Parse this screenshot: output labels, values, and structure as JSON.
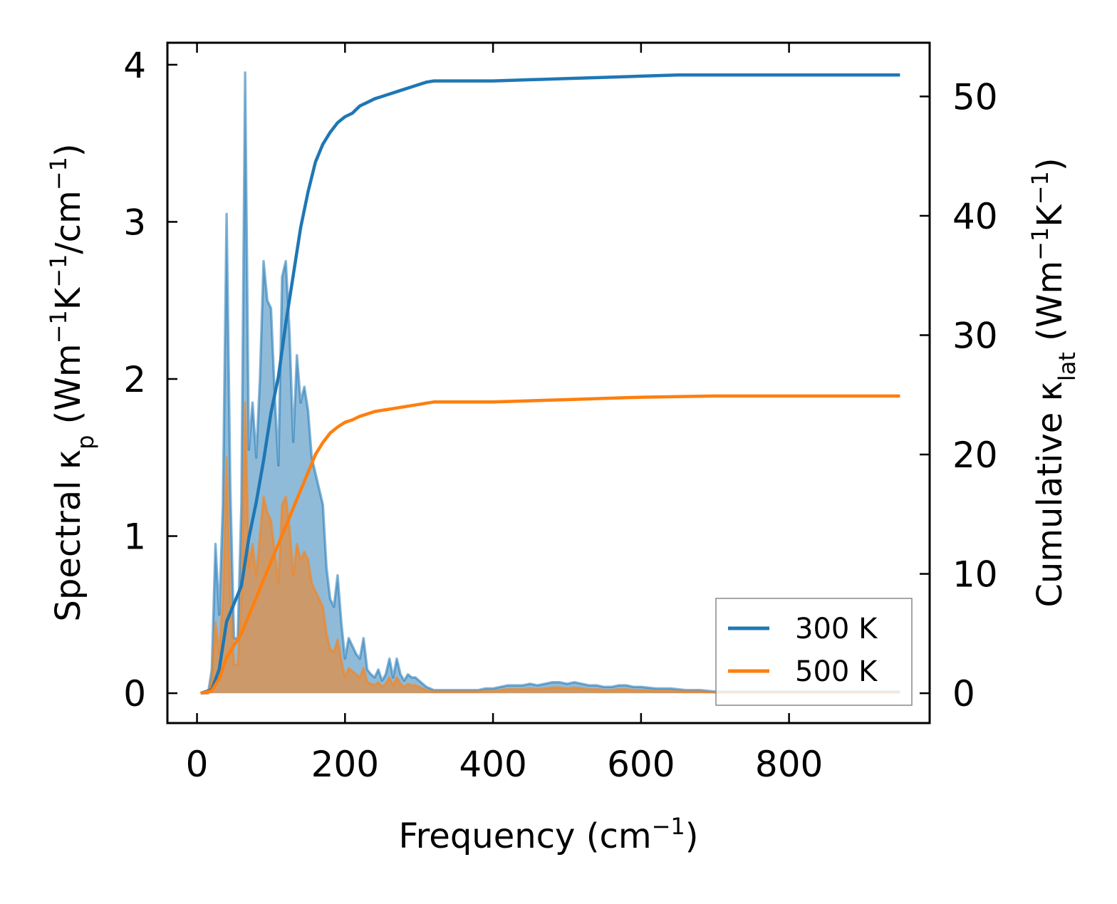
{
  "chart_data": {
    "type": "area",
    "xlabel": "Frequency (cm",
    "xlabel_sup": "−1",
    "xlabel_end": ")",
    "ylabel_left": {
      "part1": "Spectral κ",
      "sub": "p",
      "part2": " (Wm",
      "sup1": "−1",
      "part3": "K",
      "sup2": "−1",
      "part4": "/cm",
      "sup3": "−1",
      "part5": ")"
    },
    "ylabel_right": {
      "part1": "Cumulative κ",
      "sub": "lat",
      "part2": " (Wm",
      "sup1": "−1",
      "part3": "K",
      "sup2": "−1",
      "part4": ")"
    },
    "xlim": [
      -40,
      990
    ],
    "ylim_left": [
      -0.19,
      4.14
    ],
    "ylim_right": [
      -2.5,
      54.5
    ],
    "xticks": [
      0,
      200,
      400,
      600,
      800
    ],
    "yticks_left": [
      0,
      1,
      2,
      3,
      4
    ],
    "yticks_right": [
      0,
      10,
      20,
      30,
      40,
      50
    ],
    "legend_position": "lower-right",
    "colors": {
      "300K": "#1f77b4",
      "500K": "#ff7f0e",
      "blend": "#c49a6c"
    },
    "series": [
      {
        "name": "300 K",
        "spectral": {
          "x": [
            5,
            15,
            20,
            25,
            30,
            35,
            40,
            45,
            50,
            55,
            60,
            65,
            70,
            75,
            80,
            85,
            90,
            95,
            100,
            105,
            110,
            115,
            120,
            125,
            130,
            135,
            140,
            145,
            150,
            155,
            160,
            165,
            170,
            175,
            180,
            185,
            190,
            195,
            200,
            205,
            210,
            215,
            220,
            225,
            230,
            235,
            240,
            245,
            250,
            255,
            260,
            265,
            270,
            275,
            280,
            285,
            290,
            295,
            300,
            305,
            310,
            315,
            320,
            325,
            330,
            340,
            350,
            360,
            370,
            380,
            390,
            400,
            410,
            420,
            430,
            440,
            450,
            460,
            470,
            480,
            490,
            500,
            510,
            520,
            530,
            540,
            550,
            560,
            570,
            580,
            590,
            600,
            620,
            640,
            660,
            680,
            700,
            750,
            800,
            850,
            900,
            950
          ],
          "y": [
            0,
            0,
            0.15,
            0.95,
            0.5,
            1.2,
            3.05,
            1.3,
            0.35,
            0.35,
            1.2,
            3.95,
            1.55,
            1.85,
            1.5,
            2.0,
            2.75,
            2.5,
            2.45,
            1.9,
            1.45,
            2.65,
            2.75,
            2.3,
            1.6,
            2.15,
            1.85,
            1.95,
            1.8,
            1.5,
            1.4,
            1.3,
            1.2,
            0.8,
            0.6,
            0.55,
            0.75,
            0.45,
            0.22,
            0.35,
            0.3,
            0.25,
            0.22,
            0.35,
            0.15,
            0.12,
            0.1,
            0.15,
            0.08,
            0.12,
            0.22,
            0.1,
            0.22,
            0.12,
            0.08,
            0.12,
            0.1,
            0.1,
            0.08,
            0.06,
            0.04,
            0.03,
            0.02,
            0.02,
            0.02,
            0.02,
            0.02,
            0.02,
            0.02,
            0.02,
            0.03,
            0.03,
            0.04,
            0.05,
            0.05,
            0.05,
            0.06,
            0.05,
            0.06,
            0.07,
            0.07,
            0.06,
            0.07,
            0.06,
            0.05,
            0.05,
            0.04,
            0.04,
            0.05,
            0.05,
            0.04,
            0.04,
            0.03,
            0.03,
            0.02,
            0.02,
            0.01,
            0.01,
            0.01,
            0.01,
            0.01,
            0.01
          ]
        },
        "cumulative": {
          "x": [
            5,
            20,
            30,
            40,
            50,
            60,
            70,
            80,
            90,
            100,
            110,
            120,
            130,
            140,
            150,
            160,
            170,
            180,
            190,
            200,
            210,
            220,
            230,
            240,
            250,
            260,
            270,
            280,
            290,
            300,
            310,
            320,
            350,
            400,
            450,
            500,
            550,
            600,
            650,
            700,
            750,
            800,
            850,
            900,
            950
          ],
          "y": [
            0,
            0.3,
            2,
            6,
            7.5,
            9,
            13,
            16,
            19.5,
            23.5,
            26.5,
            31,
            35,
            39,
            42,
            44.5,
            46,
            47,
            47.8,
            48.3,
            48.6,
            49.2,
            49.5,
            49.8,
            50,
            50.2,
            50.4,
            50.6,
            50.8,
            51,
            51.2,
            51.3,
            51.3,
            51.3,
            51.4,
            51.5,
            51.6,
            51.7,
            51.8,
            51.8,
            51.8,
            51.8,
            51.8,
            51.8,
            51.8
          ]
        }
      },
      {
        "name": "500 K",
        "spectral": {
          "x": [
            5,
            15,
            20,
            25,
            30,
            35,
            40,
            45,
            50,
            55,
            60,
            65,
            70,
            75,
            80,
            85,
            90,
            95,
            100,
            105,
            110,
            115,
            120,
            125,
            130,
            135,
            140,
            145,
            150,
            155,
            160,
            165,
            170,
            175,
            180,
            185,
            190,
            195,
            200,
            205,
            210,
            215,
            220,
            225,
            230,
            235,
            240,
            245,
            250,
            255,
            260,
            265,
            270,
            275,
            280,
            285,
            290,
            295,
            300,
            305,
            310,
            315,
            320,
            325,
            330,
            340,
            350,
            360,
            370,
            380,
            390,
            400,
            410,
            420,
            430,
            440,
            450,
            460,
            470,
            480,
            490,
            500,
            510,
            520,
            530,
            540,
            550,
            560,
            570,
            580,
            590,
            600,
            620,
            640,
            660,
            680,
            700,
            750,
            800,
            850,
            900,
            950
          ],
          "y": [
            0,
            0,
            0.08,
            0.45,
            0.25,
            0.6,
            1.5,
            0.6,
            0.18,
            0.18,
            0.6,
            1.85,
            0.8,
            0.95,
            0.75,
            1.0,
            1.25,
            1.15,
            1.1,
            0.9,
            0.7,
            1.2,
            1.25,
            1.05,
            0.75,
            0.95,
            0.85,
            0.9,
            0.85,
            0.7,
            0.65,
            0.6,
            0.55,
            0.38,
            0.28,
            0.26,
            0.34,
            0.21,
            0.1,
            0.16,
            0.14,
            0.12,
            0.1,
            0.16,
            0.07,
            0.06,
            0.05,
            0.07,
            0.04,
            0.06,
            0.1,
            0.05,
            0.1,
            0.06,
            0.04,
            0.06,
            0.05,
            0.05,
            0.04,
            0.03,
            0.02,
            0.015,
            0.01,
            0.01,
            0.01,
            0.01,
            0.01,
            0.01,
            0.01,
            0.01,
            0.015,
            0.015,
            0.02,
            0.025,
            0.025,
            0.025,
            0.03,
            0.025,
            0.03,
            0.035,
            0.035,
            0.03,
            0.035,
            0.03,
            0.025,
            0.025,
            0.02,
            0.02,
            0.025,
            0.025,
            0.02,
            0.02,
            0.015,
            0.015,
            0.01,
            0.01,
            0.005,
            0.005,
            0.005,
            0.005,
            0.005,
            0.005
          ]
        },
        "cumulative": {
          "x": [
            5,
            20,
            30,
            40,
            50,
            60,
            70,
            80,
            90,
            100,
            110,
            120,
            130,
            140,
            150,
            160,
            170,
            180,
            190,
            200,
            210,
            220,
            230,
            240,
            250,
            260,
            270,
            280,
            290,
            300,
            310,
            320,
            350,
            400,
            450,
            500,
            550,
            600,
            650,
            700,
            750,
            800,
            850,
            900,
            950
          ],
          "y": [
            0,
            0.2,
            1.2,
            3,
            4,
            5,
            6.5,
            8,
            9.5,
            11,
            12.5,
            14,
            15.5,
            17,
            18.5,
            20,
            21,
            21.8,
            22.3,
            22.7,
            22.9,
            23.2,
            23.4,
            23.6,
            23.7,
            23.8,
            23.9,
            24,
            24.1,
            24.2,
            24.3,
            24.4,
            24.4,
            24.4,
            24.5,
            24.6,
            24.7,
            24.8,
            24.85,
            24.9,
            24.9,
            24.9,
            24.9,
            24.9,
            24.9
          ]
        }
      }
    ]
  }
}
